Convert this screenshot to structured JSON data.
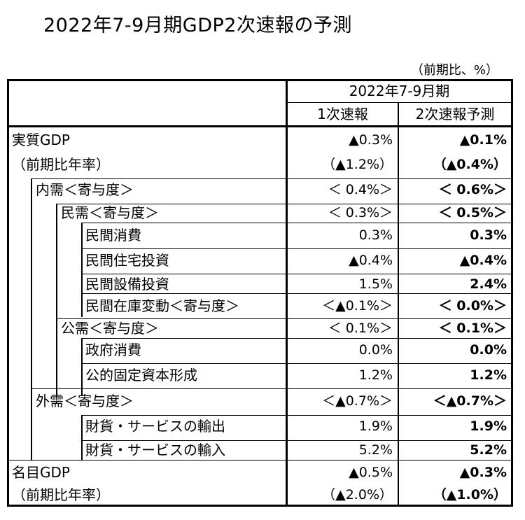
{
  "title": "2022年7-9月期GDP2次速報の予測",
  "unit": "（前期比、%）",
  "header": {
    "period": "2022年7-9月期",
    "col1": "1次速報",
    "col2": "2次速報予測"
  },
  "rows": [
    {
      "label": "実質GDP",
      "v1": "▲0.3%",
      "v2": "▲0.1%"
    },
    {
      "label": "（前期比年率）",
      "v1": "（▲1.2%）",
      "v2": "（▲0.4%）"
    },
    {
      "label": "内需＜寄与度＞",
      "v1": "＜ 0.4%＞",
      "v2": "＜ 0.6%＞"
    },
    {
      "label": "民需＜寄与度＞",
      "v1": "＜ 0.3%＞",
      "v2": "＜ 0.5%＞"
    },
    {
      "label": "民間消費",
      "v1": "0.3%",
      "v2": "0.3%"
    },
    {
      "label": "民間住宅投資",
      "v1": "▲0.4%",
      "v2": "▲0.4%"
    },
    {
      "label": "民間設備投資",
      "v1": "1.5%",
      "v2": "2.4%"
    },
    {
      "label": "民間在庫変動＜寄与度＞",
      "v1": "＜▲0.1%＞",
      "v2": "＜ 0.0%＞"
    },
    {
      "label": "公需＜寄与度＞",
      "v1": "＜ 0.1%＞",
      "v2": "＜ 0.1%＞"
    },
    {
      "label": "政府消費",
      "v1": "0.0%",
      "v2": "0.0%"
    },
    {
      "label": "公的固定資本形成",
      "v1": "1.2%",
      "v2": "1.2%"
    },
    {
      "label": "外需＜寄与度＞",
      "v1": "＜▲0.7%＞",
      "v2": "＜▲0.7%＞"
    },
    {
      "label": "財貨・サービスの輸出",
      "v1": "1.9%",
      "v2": "1.9%"
    },
    {
      "label": "財貨・サービスの輸入",
      "v1": "5.2%",
      "v2": "5.2%"
    },
    {
      "label": "名目GDP",
      "v1": "▲0.5%",
      "v2": "▲0.3%"
    },
    {
      "label": "（前期比年率）",
      "v1": "（▲2.0%）",
      "v2": "（▲1.0%）"
    }
  ]
}
